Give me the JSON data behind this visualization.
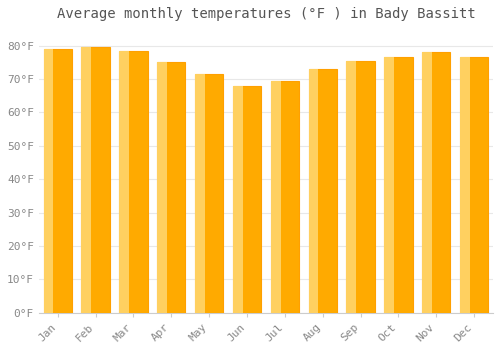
{
  "title": "Average monthly temperatures (°F ) in Bady Bassitt",
  "months": [
    "Jan",
    "Feb",
    "Mar",
    "Apr",
    "May",
    "Jun",
    "Jul",
    "Aug",
    "Sep",
    "Oct",
    "Nov",
    "Dec"
  ],
  "values": [
    79,
    79.5,
    78.5,
    75,
    71.5,
    68,
    69.5,
    73,
    75.5,
    76.5,
    78,
    76.5
  ],
  "bar_color_face": "#FFAA00",
  "bar_color_left": "#FFD060",
  "bar_color_edge": "#FFA000",
  "background_color": "#FFFFFF",
  "grid_color": "#E8E8E8",
  "ytick_labels": [
    "0°F",
    "10°F",
    "20°F",
    "30°F",
    "40°F",
    "50°F",
    "60°F",
    "70°F",
    "80°F"
  ],
  "ytick_values": [
    0,
    10,
    20,
    30,
    40,
    50,
    60,
    70,
    80
  ],
  "ylim": [
    0,
    85
  ],
  "title_fontsize": 10,
  "tick_fontsize": 8,
  "tick_font_color": "#888888"
}
